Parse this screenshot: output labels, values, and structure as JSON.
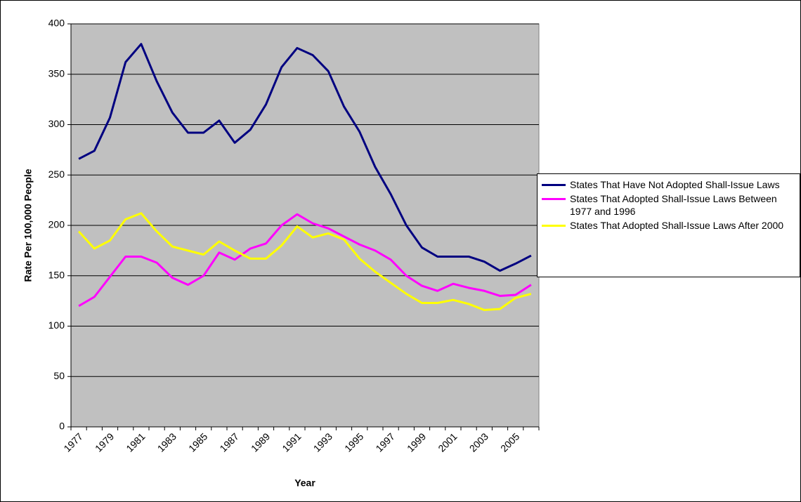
{
  "chart_data": {
    "type": "line",
    "x_label": "Year",
    "y_label": "Rate Per 100,000 People",
    "categories": [
      "1977",
      null,
      "1979",
      null,
      "1981",
      null,
      "1983",
      null,
      "1985",
      null,
      "1987",
      null,
      "1989",
      null,
      "1991",
      null,
      "1993",
      null,
      "1995",
      null,
      "1997",
      null,
      "1999",
      null,
      "2001",
      null,
      "2003",
      null,
      "2005",
      null
    ],
    "series": [
      {
        "name": "States That Have Not Adopted Shall-Issue Laws",
        "color": "#000080",
        "values": [
          266,
          274,
          307,
          362,
          380,
          343,
          312,
          292,
          292,
          304,
          282,
          295,
          320,
          357,
          376,
          369,
          353,
          318,
          293,
          258,
          231,
          200,
          178,
          169,
          169,
          169,
          164,
          155,
          162,
          170
        ]
      },
      {
        "name": "States That Adopted Shall-Issue Laws Between 1977 and 1996",
        "color": "#ff00ff",
        "values": [
          120,
          129,
          149,
          169,
          169,
          163,
          148,
          141,
          150,
          173,
          166,
          177,
          182,
          200,
          211,
          202,
          197,
          189,
          181,
          175,
          166,
          150,
          140,
          135,
          142,
          138,
          135,
          130,
          131,
          141
        ]
      },
      {
        "name": "States That Adopted Shall-Issue Laws After 2000",
        "color": "#ffff00",
        "values": [
          194,
          177,
          185,
          206,
          212,
          194,
          179,
          175,
          171,
          184,
          175,
          167,
          167,
          180,
          199,
          188,
          192,
          186,
          167,
          154,
          143,
          132,
          123,
          123,
          126,
          122,
          116,
          117,
          128,
          132
        ]
      }
    ],
    "ylim": [
      0,
      400
    ],
    "yticks": [
      0,
      50,
      100,
      150,
      200,
      250,
      300,
      350,
      400
    ],
    "grid": true,
    "plot_background": "#c0c0c0",
    "legend": "right"
  }
}
